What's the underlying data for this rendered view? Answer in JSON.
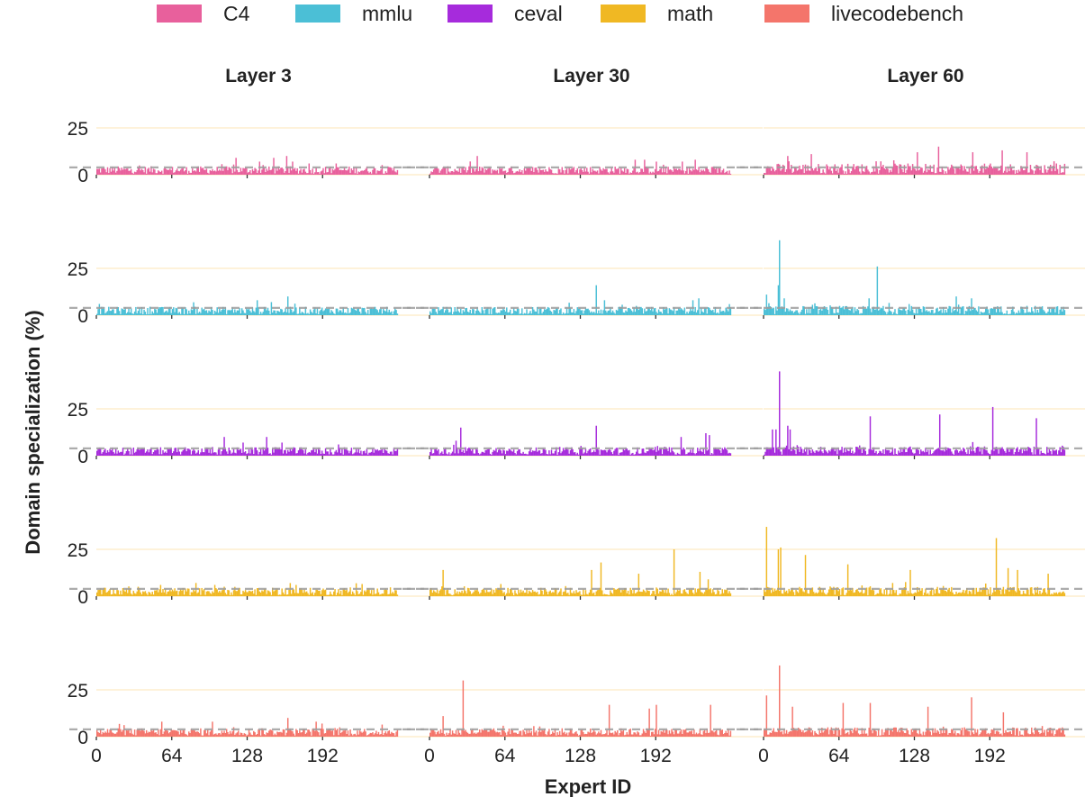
{
  "chart_data": {
    "type": "bar",
    "title": "",
    "xlabel": "Expert ID",
    "ylabel": "Domain specialization (%)",
    "ylim": [
      0,
      40
    ],
    "yticks": [
      0,
      25
    ],
    "xticks": [
      0,
      64,
      128,
      192
    ],
    "num_experts": 256,
    "reference_line": {
      "value": 3.9,
      "style": "dashed",
      "color": "#9e9e9e"
    },
    "gridline_color": "#fde9c4",
    "legend_position": "top",
    "columns": [
      "Layer 3",
      "Layer 30",
      "Layer 60"
    ],
    "series": [
      {
        "name": "C4",
        "color": "#e8609c",
        "panels": [
          {
            "layer": "Layer 3",
            "baseline_range": [
              0.5,
              4.5
            ],
            "peaks": [
              [
                118,
                9
              ],
              [
                150,
                9
              ],
              [
                161,
                10
              ],
              [
                166,
                7
              ],
              [
                138,
                7
              ],
              [
                180,
                6
              ],
              [
                203,
                6
              ]
            ]
          },
          {
            "layer": "Layer 30",
            "baseline_range": [
              0.5,
              4.5
            ],
            "peaks": [
              [
                40,
                10
              ],
              [
                174,
                8
              ],
              [
                182,
                8
              ],
              [
                225,
                8
              ],
              [
                192,
                7
              ],
              [
                214,
                7
              ]
            ]
          },
          {
            "layer": "Layer 60",
            "baseline_range": [
              0.5,
              6
            ],
            "peaks": [
              [
                148,
                15
              ],
              [
                130,
                12
              ],
              [
                202,
                13
              ],
              [
                177,
                12
              ],
              [
                223,
                12
              ],
              [
                20,
                10
              ],
              [
                40,
                11
              ],
              [
                248,
                6
              ]
            ]
          }
        ]
      },
      {
        "name": "mmlu",
        "color": "#4bbfd6",
        "panels": [
          {
            "layer": "Layer 3",
            "baseline_range": [
              0.5,
              4.5
            ],
            "peaks": [
              [
                162,
                10
              ],
              [
                136,
                8
              ],
              [
                148,
                7
              ],
              [
                2,
                6
              ]
            ]
          },
          {
            "layer": "Layer 30",
            "baseline_range": [
              0.5,
              4.5
            ],
            "peaks": [
              [
                141,
                16
              ],
              [
                148,
                8
              ],
              [
                228,
                9
              ],
              [
                223,
                8
              ]
            ]
          },
          {
            "layer": "Layer 60",
            "baseline_range": [
              0.5,
              5
            ],
            "peaks": [
              [
                13,
                40
              ],
              [
                12,
                16
              ],
              [
                96,
                26
              ],
              [
                2,
                11
              ],
              [
                17,
                9
              ],
              [
                89,
                9
              ],
              [
                176,
                9
              ],
              [
                163,
                10
              ]
            ]
          }
        ]
      },
      {
        "name": "ceval",
        "color": "#a62bdc",
        "panels": [
          {
            "layer": "Layer 3",
            "baseline_range": [
              0.5,
              4.5
            ],
            "peaks": [
              [
                108,
                10
              ],
              [
                144,
                10
              ],
              [
                124,
                7
              ],
              [
                157,
                7
              ],
              [
                205,
                6
              ]
            ]
          },
          {
            "layer": "Layer 30",
            "baseline_range": [
              0.5,
              4.5
            ],
            "peaks": [
              [
                26,
                15
              ],
              [
                141,
                16
              ],
              [
                234,
                12
              ],
              [
                237,
                11
              ],
              [
                213,
                10
              ],
              [
                22,
                8
              ]
            ]
          },
          {
            "layer": "Layer 60",
            "baseline_range": [
              0.5,
              5
            ],
            "peaks": [
              [
                13,
                45
              ],
              [
                194,
                26
              ],
              [
                10,
                14
              ],
              [
                22,
                14
              ],
              [
                20,
                16
              ],
              [
                90,
                21
              ],
              [
                149,
                22
              ],
              [
                231,
                20
              ],
              [
                7,
                14
              ]
            ]
          }
        ]
      },
      {
        "name": "math",
        "color": "#f0b823",
        "panels": [
          {
            "layer": "Layer 3",
            "baseline_range": [
              0.5,
              4.5
            ],
            "peaks": [
              [
                164,
                7
              ],
              [
                100,
                6
              ],
              [
                54,
                6
              ]
            ]
          },
          {
            "layer": "Layer 30",
            "baseline_range": [
              0.5,
              4.5
            ],
            "peaks": [
              [
                207,
                25
              ],
              [
                145,
                18
              ],
              [
                137,
                14
              ],
              [
                177,
                12
              ],
              [
                229,
                13
              ],
              [
                11,
                14
              ],
              [
                236,
                9
              ]
            ]
          },
          {
            "layer": "Layer 60",
            "baseline_range": [
              0.5,
              5
            ],
            "peaks": [
              [
                2,
                37
              ],
              [
                197,
                31
              ],
              [
                12,
                25
              ],
              [
                14,
                26
              ],
              [
                35,
                22
              ],
              [
                71,
                17
              ],
              [
                124,
                14
              ],
              [
                207,
                15
              ],
              [
                215,
                14
              ],
              [
                241,
                12
              ]
            ]
          }
        ]
      },
      {
        "name": "livecodebench",
        "color": "#f4756b",
        "panels": [
          {
            "layer": "Layer 3",
            "baseline_range": [
              0.5,
              4.5
            ],
            "peaks": [
              [
                162,
                10
              ],
              [
                98,
                8
              ],
              [
                186,
                8
              ],
              [
                191,
                7
              ],
              [
                55,
                8
              ]
            ]
          },
          {
            "layer": "Layer 30",
            "baseline_range": [
              0.5,
              4.5
            ],
            "peaks": [
              [
                28,
                30
              ],
              [
                152,
                17
              ],
              [
                238,
                17
              ],
              [
                186,
                15
              ],
              [
                192,
                17
              ],
              [
                11,
                11
              ]
            ]
          },
          {
            "layer": "Layer 60",
            "baseline_range": [
              0.5,
              5
            ],
            "peaks": [
              [
                13,
                38
              ],
              [
                2,
                22
              ],
              [
                176,
                21
              ],
              [
                67,
                18
              ],
              [
                90,
                18
              ],
              [
                139,
                16
              ],
              [
                24,
                16
              ],
              [
                203,
                13
              ]
            ]
          }
        ]
      }
    ]
  }
}
